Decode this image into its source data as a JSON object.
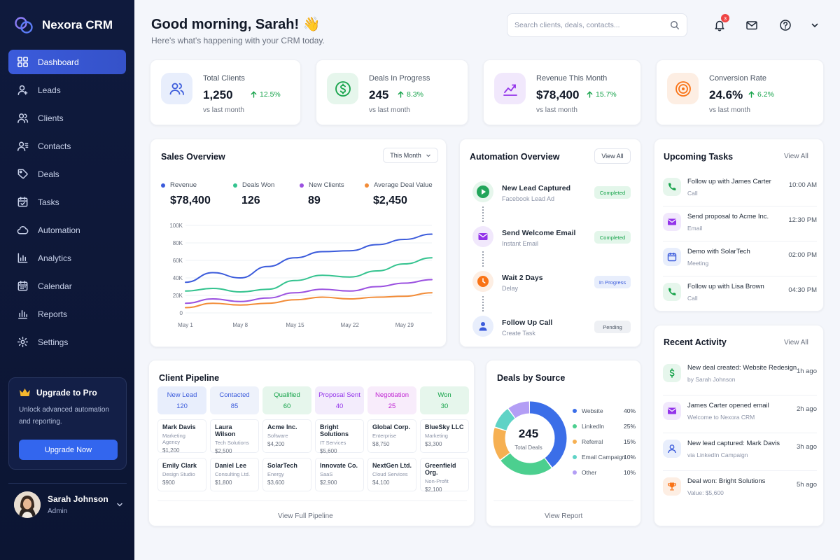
{
  "app": {
    "name": "Nexora CRM"
  },
  "sidebar": {
    "items": [
      {
        "label": "Dashboard",
        "icon": "grid-icon",
        "active": true
      },
      {
        "label": "Leads",
        "icon": "lead-user-icon"
      },
      {
        "label": "Clients",
        "icon": "users-icon"
      },
      {
        "label": "Contacts",
        "icon": "contacts-icon"
      },
      {
        "label": "Deals",
        "icon": "tag-icon"
      },
      {
        "label": "Tasks",
        "icon": "calendar-check-icon"
      },
      {
        "label": "Automation",
        "icon": "cloud-icon"
      },
      {
        "label": "Analytics",
        "icon": "bar-chart-icon"
      },
      {
        "label": "Calendar",
        "icon": "calendar-icon"
      },
      {
        "label": "Reports",
        "icon": "reports-icon"
      },
      {
        "label": "Settings",
        "icon": "gear-icon"
      }
    ],
    "upgrade": {
      "title": "Upgrade to Pro",
      "text": "Unlock advanced automation and reporting.",
      "button": "Upgrade Now"
    },
    "user": {
      "name": "Sarah Johnson",
      "role": "Admin"
    }
  },
  "header": {
    "greeting": "Good morning, Sarah! 👋",
    "subtitle": "Here's what's happening with your CRM today.",
    "search_placeholder": "Search clients, deals, contacts...",
    "notification_count": "3"
  },
  "kpis": [
    {
      "label": "Total Clients",
      "value": "1,250",
      "delta": "12.5%",
      "sub": "vs last month",
      "icon": "users-icon",
      "color": "#3b5bdb",
      "bg": "#e8eefc"
    },
    {
      "label": "Deals In Progress",
      "value": "245",
      "delta": "8.3%",
      "sub": "vs last month",
      "icon": "dollar-icon",
      "color": "#16a34a",
      "bg": "#e6f6ec"
    },
    {
      "label": "Revenue This Month",
      "value": "$78,400",
      "delta": "15.7%",
      "sub": "vs last month",
      "icon": "trend-up-icon",
      "color": "#9333ea",
      "bg": "#f1e8fc"
    },
    {
      "label": "Conversion Rate",
      "value": "24.6%",
      "delta": "6.2%",
      "sub": "vs last month",
      "icon": "target-icon",
      "color": "#f97316",
      "bg": "#fdeee3"
    }
  ],
  "sales": {
    "title": "Sales Overview",
    "range": "This Month",
    "stats": [
      {
        "label": "Revenue",
        "value": "$78,400",
        "color": "#3b5bdb"
      },
      {
        "label": "Deals Won",
        "value": "126",
        "color": "#34c38f"
      },
      {
        "label": "New Clients",
        "value": "89",
        "color": "#9b51e0"
      },
      {
        "label": "Average Deal Value",
        "value": "$2,450",
        "color": "#f28c38"
      }
    ]
  },
  "chart_data": {
    "type": "line",
    "x": [
      "May 1",
      "May 4",
      "May 8",
      "May 12",
      "May 15",
      "May 19",
      "May 22",
      "May 26",
      "May 29",
      "May 31"
    ],
    "xticks": [
      "May 1",
      "May 8",
      "May 15",
      "May 22",
      "May 29"
    ],
    "yticks": [
      "0",
      "20K",
      "40K",
      "60K",
      "80K",
      "100K"
    ],
    "ylim": [
      0,
      100000
    ],
    "grid": true,
    "series": [
      {
        "color": "#3b5bdb",
        "values": [
          35000,
          46000,
          40000,
          53000,
          63000,
          70000,
          71000,
          78000,
          84000,
          90000
        ]
      },
      {
        "color": "#34c38f",
        "values": [
          25000,
          28000,
          24000,
          27000,
          37000,
          43000,
          41000,
          48000,
          56000,
          63000
        ]
      },
      {
        "color": "#9b51e0",
        "values": [
          11000,
          16000,
          13000,
          17000,
          23000,
          27000,
          25000,
          30000,
          34000,
          38000
        ]
      },
      {
        "color": "#f28c38",
        "values": [
          6000,
          11000,
          9000,
          11000,
          15000,
          18000,
          16000,
          18000,
          19000,
          23000
        ]
      }
    ]
  },
  "automation": {
    "title": "Automation Overview",
    "view_all": "View All",
    "steps": [
      {
        "title": "New Lead Captured",
        "sub": "Facebook Lead Ad",
        "status": "Completed",
        "icon": "play-icon",
        "color": "#16a34a",
        "bg": "#e6f6ec",
        "pill_bg": "#e3f6ea",
        "pill_color": "#16a34a"
      },
      {
        "title": "Send Welcome Email",
        "sub": "Instant Email",
        "status": "Completed",
        "icon": "mail-icon",
        "color": "#9333ea",
        "bg": "#f1e8fc",
        "pill_bg": "#e3f6ea",
        "pill_color": "#16a34a"
      },
      {
        "title": "Wait 2 Days",
        "sub": "Delay",
        "status": "In Progress",
        "icon": "clock-icon",
        "color": "#f97316",
        "bg": "#fdeee3",
        "pill_bg": "#e8eefc",
        "pill_color": "#3b5bdb"
      },
      {
        "title": "Follow Up Call",
        "sub": "Create Task",
        "status": "Pending",
        "icon": "user-icon",
        "color": "#3b5bdb",
        "bg": "#e8eefc",
        "pill_bg": "#eef0f4",
        "pill_color": "#4b5563"
      }
    ]
  },
  "tasks": {
    "title": "Upcoming Tasks",
    "view_all": "View All",
    "items": [
      {
        "title": "Follow up with James Carter",
        "sub": "Call",
        "time": "10:00 AM",
        "icon": "phone-icon",
        "color": "#16a34a",
        "bg": "#e6f6ec"
      },
      {
        "title": "Send proposal to Acme Inc.",
        "sub": "Email",
        "time": "12:30 PM",
        "icon": "mail-icon",
        "color": "#9333ea",
        "bg": "#f1e8fc"
      },
      {
        "title": "Demo with SolarTech",
        "sub": "Meeting",
        "time": "02:00 PM",
        "icon": "calendar-icon",
        "color": "#3b5bdb",
        "bg": "#e8eefc"
      },
      {
        "title": "Follow up with Lisa Brown",
        "sub": "Call",
        "time": "04:30 PM",
        "icon": "phone-icon",
        "color": "#16a34a",
        "bg": "#e6f6ec"
      }
    ]
  },
  "pipeline": {
    "title": "Client Pipeline",
    "footer": "View Full Pipeline",
    "columns": [
      {
        "label": "New Lead",
        "count": "120",
        "color": "#3b5bdb",
        "bg": "#e8eefc",
        "cards": [
          {
            "name": "Mark Davis",
            "sub": "Marketing Agency",
            "value": "$1,200"
          },
          {
            "name": "Emily Clark",
            "sub": "Design Studio",
            "value": "$900"
          }
        ]
      },
      {
        "label": "Contacted",
        "count": "85",
        "color": "#3b5bdb",
        "bg": "#eef2fb",
        "cards": [
          {
            "name": "Laura Wilson",
            "sub": "Tech Solutions",
            "value": "$2,500"
          },
          {
            "name": "Daniel Lee",
            "sub": "Consulting Ltd.",
            "value": "$1,800"
          }
        ]
      },
      {
        "label": "Qualified",
        "count": "60",
        "color": "#16a34a",
        "bg": "#e6f6ec",
        "cards": [
          {
            "name": "Acme Inc.",
            "sub": "Software",
            "value": "$4,200"
          },
          {
            "name": "SolarTech",
            "sub": "Energy",
            "value": "$3,600"
          }
        ]
      },
      {
        "label": "Proposal Sent",
        "count": "40",
        "color": "#9333ea",
        "bg": "#f3ecfc",
        "cards": [
          {
            "name": "Bright Solutions",
            "sub": "IT Services",
            "value": "$5,600"
          },
          {
            "name": "Innovate Co.",
            "sub": "SaaS",
            "value": "$2,900"
          }
        ]
      },
      {
        "label": "Negotiation",
        "count": "25",
        "color": "#c026d3",
        "bg": "#f8ecfb",
        "cards": [
          {
            "name": "Global Corp.",
            "sub": "Enterprise",
            "value": "$8,750"
          },
          {
            "name": "NextGen Ltd.",
            "sub": "Cloud Services",
            "value": "$4,100"
          }
        ]
      },
      {
        "label": "Won",
        "count": "30",
        "color": "#16a34a",
        "bg": "#e6f6ec",
        "cards": [
          {
            "name": "BlueSky LLC",
            "sub": "Marketing",
            "value": "$3,300"
          },
          {
            "name": "Greenfield Org.",
            "sub": "Non-Profit",
            "value": "$2,100"
          }
        ]
      }
    ]
  },
  "sources": {
    "title": "Deals by Source",
    "total": "245",
    "total_label": "Total Deals",
    "footer": "View Report",
    "items": [
      {
        "label": "Website",
        "value": "40%",
        "pct": 40,
        "color": "#3b6ee8"
      },
      {
        "label": "LinkedIn",
        "value": "25%",
        "pct": 25,
        "color": "#4ccf8f"
      },
      {
        "label": "Referral",
        "value": "15%",
        "pct": 15,
        "color": "#f6b052"
      },
      {
        "label": "Email Campaign",
        "value": "10%",
        "pct": 10,
        "color": "#5fd3c6"
      },
      {
        "label": "Other",
        "value": "10%",
        "pct": 10,
        "color": "#b39ef5"
      }
    ]
  },
  "activity": {
    "title": "Recent Activity",
    "view_all": "View All",
    "items": [
      {
        "title": "New deal created: Website Redesign",
        "sub": "by Sarah Johnson",
        "time": "1h ago",
        "icon": "dollar-icon",
        "color": "#16a34a",
        "bg": "#e6f6ec"
      },
      {
        "title": "James Carter opened email",
        "sub": "Welcome to Nexora CRM",
        "time": "2h ago",
        "icon": "mail-icon",
        "color": "#9333ea",
        "bg": "#f1e8fc"
      },
      {
        "title": "New lead captured: Mark Davis",
        "sub": "via LinkedIn Campaign",
        "time": "3h ago",
        "icon": "user-icon",
        "color": "#3b5bdb",
        "bg": "#e8eefc"
      },
      {
        "title": "Deal won: Bright Solutions",
        "sub": "Value: $5,600",
        "time": "5h ago",
        "icon": "trophy-icon",
        "color": "#f97316",
        "bg": "#fdeee3"
      }
    ]
  }
}
